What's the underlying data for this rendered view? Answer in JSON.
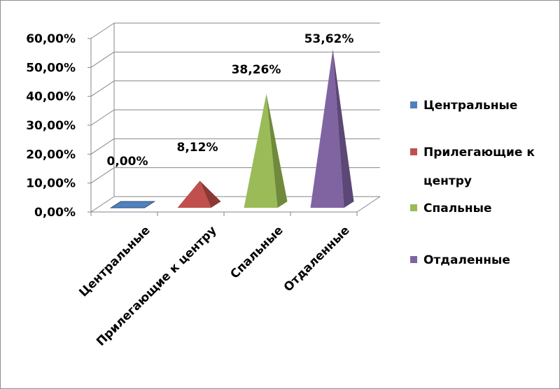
{
  "chart_data": {
    "type": "bar",
    "style": "3d-pyramid",
    "categories": [
      "Центральные",
      "Прилегающие к центру",
      "Спальные",
      "Отдаленные"
    ],
    "values": [
      0.0,
      8.12,
      38.26,
      53.62
    ],
    "data_labels": [
      "0,00%",
      "8,12%",
      "38,26%",
      "53,62%"
    ],
    "y_ticks": [
      "0,00%",
      "10,00%",
      "20,00%",
      "30,00%",
      "40,00%",
      "50,00%",
      "60,00%"
    ],
    "ylim": [
      0,
      60
    ],
    "grid": true,
    "legend_position": "right",
    "legend": [
      {
        "lines": [
          "Центральные"
        ],
        "color": "#4f81bd"
      },
      {
        "lines": [
          "Прилегающие к",
          "центру"
        ],
        "color": "#c0504d"
      },
      {
        "lines": [
          "Спальные"
        ],
        "color": "#9bbb59"
      },
      {
        "lines": [
          "Отдаленные"
        ],
        "color": "#8064a2"
      }
    ],
    "colors": {
      "series": [
        "#4f81bd",
        "#c0504d",
        "#9bbb59",
        "#8064a2"
      ],
      "series_dark": [
        "#2c4d75",
        "#8c3836",
        "#6f8a3a",
        "#5c4776"
      ],
      "grid": "#868686"
    }
  }
}
